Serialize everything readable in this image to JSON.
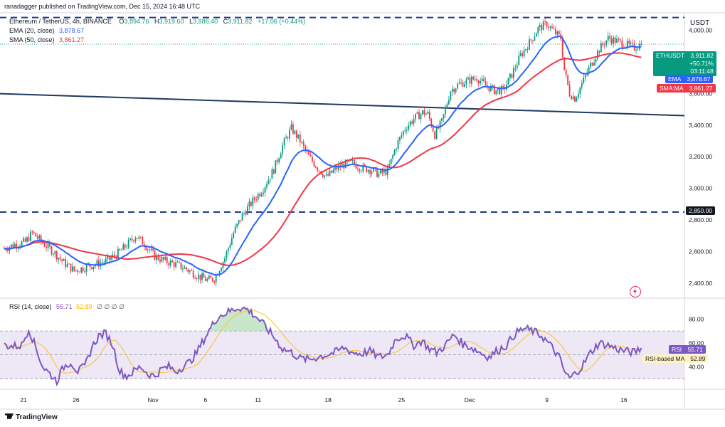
{
  "header": {
    "publisher": "ranadagger published on TradingView.com, Dec 15, 2024 16:48 UTC",
    "symbol_line": "Ethereum / TetherUS, 4h, BINANCE",
    "ohlc": {
      "o_label": "O",
      "o": "3,894.76",
      "h_label": "H",
      "h": "3,919.60",
      "l_label": "L",
      "l": "3,886.40",
      "c_label": "C",
      "c": "3,911.82",
      "chg": "+17.06 (+0.44%)"
    },
    "ema_label": "EMA (20, close)",
    "ema_value": "3,878.67",
    "sma_label": "SMA (50, close)",
    "sma_value": "3,861.27",
    "rsi_label": "RSI (14, close)",
    "rsi_value": "55.71",
    "rsi_ma_value": "52.89",
    "rsi_extra": "∅ ∅ ∅ ∅"
  },
  "currency": "USDT",
  "price_tags": {
    "symbol": "ETHUSDT",
    "price": "3,911.82",
    "change": "+50.71%",
    "countdown": "03:11:48",
    "ema_tag": "EMA",
    "ema": "3,878.67",
    "sma_tag": "SMA:MA",
    "sma": "3,861.27",
    "level": "2,850.00",
    "rsi_tag": "RSI",
    "rsi": "55.71",
    "rsi_ma_tag": "RSI-based MA",
    "rsi_ma": "52.89"
  },
  "footer": {
    "brand": "TradingView"
  },
  "colors": {
    "up": "#089981",
    "down": "#f23645",
    "ema": "#2962ff",
    "sma": "#f23645",
    "rsi": "#7e57c2",
    "rsi_ma": "#f7c948",
    "level": "#1e3a8a",
    "trend": "#1e3a5f",
    "rsi_band": "#ede7f6"
  },
  "chart_data": [
    {
      "type": "candlestick",
      "symbol": "ETHUSDT",
      "timeframe": "4h",
      "y_axis": {
        "ticks": [
          2400,
          2600,
          2800,
          3000,
          3200,
          3400,
          3600,
          3800,
          4000
        ],
        "tick_labels": [
          "2,400.00",
          "2,600.00",
          "2,800.00",
          "3,000.00",
          "3,200.00",
          "3,400.00",
          "3,600.00",
          "3,800.00",
          "4,000.00"
        ],
        "range": [
          2310,
          4110
        ]
      },
      "x_axis": {
        "tick_labels": [
          "21",
          "26",
          "Nov",
          "6",
          "11",
          "18",
          "25",
          "Dec",
          "9",
          "16"
        ]
      },
      "horizontal_levels": [
        {
          "value": 4080,
          "style": "dashed"
        },
        {
          "value": 2850,
          "style": "dashed",
          "label": "2,850.00"
        }
      ],
      "trendline": {
        "start": {
          "x": "Oct 18",
          "y": 3600
        },
        "end": {
          "x": "Dec 19",
          "y": 3460
        }
      },
      "price_path": [
        [
          0,
          2620
        ],
        [
          6,
          2645
        ],
        [
          12,
          2660
        ],
        [
          16,
          2720
        ],
        [
          22,
          2655
        ],
        [
          28,
          2600
        ],
        [
          34,
          2530
        ],
        [
          40,
          2480
        ],
        [
          46,
          2500
        ],
        [
          52,
          2520
        ],
        [
          58,
          2540
        ],
        [
          64,
          2580
        ],
        [
          70,
          2640
        ],
        [
          75,
          2700
        ],
        [
          80,
          2650
        ],
        [
          86,
          2570
        ],
        [
          92,
          2540
        ],
        [
          98,
          2520
        ],
        [
          104,
          2490
        ],
        [
          110,
          2450
        ],
        [
          116,
          2420
        ],
        [
          120,
          2430
        ],
        [
          126,
          2560
        ],
        [
          131,
          2720
        ],
        [
          136,
          2830
        ],
        [
          142,
          2920
        ],
        [
          148,
          3000
        ],
        [
          154,
          3120
        ],
        [
          159,
          3270
        ],
        [
          164,
          3380
        ],
        [
          169,
          3300
        ],
        [
          174,
          3200
        ],
        [
          179,
          3130
        ],
        [
          184,
          3070
        ],
        [
          189,
          3120
        ],
        [
          194,
          3150
        ],
        [
          199,
          3160
        ],
        [
          204,
          3130
        ],
        [
          209,
          3120
        ],
        [
          214,
          3090
        ],
        [
          219,
          3110
        ],
        [
          224,
          3270
        ],
        [
          229,
          3380
        ],
        [
          234,
          3440
        ],
        [
          239,
          3480
        ],
        [
          242,
          3470
        ],
        [
          246,
          3340
        ],
        [
          250,
          3420
        ],
        [
          255,
          3620
        ],
        [
          260,
          3660
        ],
        [
          265,
          3680
        ],
        [
          270,
          3700
        ],
        [
          275,
          3650
        ],
        [
          280,
          3620
        ],
        [
          285,
          3620
        ],
        [
          290,
          3720
        ],
        [
          295,
          3840
        ],
        [
          300,
          3920
        ],
        [
          305,
          4010
        ],
        [
          310,
          4040
        ],
        [
          315,
          3980
        ],
        [
          318,
          3950
        ],
        [
          320,
          3750
        ],
        [
          323,
          3600
        ],
        [
          326,
          3570
        ],
        [
          330,
          3660
        ],
        [
          335,
          3780
        ],
        [
          340,
          3880
        ],
        [
          345,
          3950
        ],
        [
          350,
          3930
        ],
        [
          355,
          3910
        ],
        [
          360,
          3890
        ],
        [
          364,
          3912
        ]
      ],
      "ema": {
        "name": "EMA (20, close)",
        "last": 3878.67
      },
      "sma": {
        "name": "SMA (50, close)",
        "last": 3861.27
      },
      "last_price": 3911.82
    },
    {
      "type": "line",
      "name": "RSI (14, close)",
      "y_axis": {
        "ticks": [
          40,
          60,
          80
        ],
        "tick_labels": [
          "40.00",
          "60.00",
          "80.00"
        ],
        "range": [
          21,
          97
        ]
      },
      "bands": {
        "upper": 70,
        "middle": 50,
        "lower": 30
      },
      "rsi_path": [
        [
          0,
          58
        ],
        [
          5,
          57
        ],
        [
          10,
          58
        ],
        [
          14,
          72
        ],
        [
          18,
          56
        ],
        [
          22,
          40
        ],
        [
          26,
          34
        ],
        [
          30,
          28
        ],
        [
          34,
          40
        ],
        [
          38,
          44
        ],
        [
          42,
          36
        ],
        [
          46,
          40
        ],
        [
          50,
          56
        ],
        [
          54,
          66
        ],
        [
          58,
          68
        ],
        [
          62,
          58
        ],
        [
          66,
          36
        ],
        [
          70,
          32
        ],
        [
          74,
          36
        ],
        [
          78,
          40
        ],
        [
          82,
          34
        ],
        [
          86,
          32
        ],
        [
          90,
          38
        ],
        [
          94,
          40
        ],
        [
          98,
          36
        ],
        [
          102,
          40
        ],
        [
          106,
          44
        ],
        [
          110,
          52
        ],
        [
          116,
          68
        ],
        [
          122,
          82
        ],
        [
          128,
          86
        ],
        [
          134,
          90
        ],
        [
          139,
          88
        ],
        [
          144,
          82
        ],
        [
          149,
          74
        ],
        [
          154,
          65
        ],
        [
          159,
          55
        ],
        [
          164,
          52
        ],
        [
          169,
          47
        ],
        [
          174,
          46
        ],
        [
          179,
          48
        ],
        [
          184,
          50
        ],
        [
          189,
          52
        ],
        [
          194,
          56
        ],
        [
          199,
          52
        ],
        [
          204,
          51
        ],
        [
          209,
          53
        ],
        [
          214,
          48
        ],
        [
          219,
          50
        ],
        [
          224,
          64
        ],
        [
          229,
          66
        ],
        [
          234,
          58
        ],
        [
          239,
          62
        ],
        [
          242,
          56
        ],
        [
          247,
          52
        ],
        [
          252,
          58
        ],
        [
          257,
          67
        ],
        [
          262,
          59
        ],
        [
          267,
          56
        ],
        [
          272,
          52
        ],
        [
          277,
          48
        ],
        [
          282,
          54
        ],
        [
          287,
          58
        ],
        [
          292,
          68
        ],
        [
          297,
          72
        ],
        [
          302,
          70
        ],
        [
          307,
          66
        ],
        [
          312,
          58
        ],
        [
          317,
          48
        ],
        [
          320,
          36
        ],
        [
          323,
          30
        ],
        [
          326,
          34
        ],
        [
          330,
          40
        ],
        [
          335,
          52
        ],
        [
          340,
          60
        ],
        [
          345,
          58
        ],
        [
          350,
          55
        ],
        [
          355,
          53
        ],
        [
          360,
          52
        ],
        [
          364,
          56
        ]
      ],
      "last": 55.71,
      "ma": {
        "name": "RSI-based MA",
        "last": 52.89
      }
    }
  ]
}
